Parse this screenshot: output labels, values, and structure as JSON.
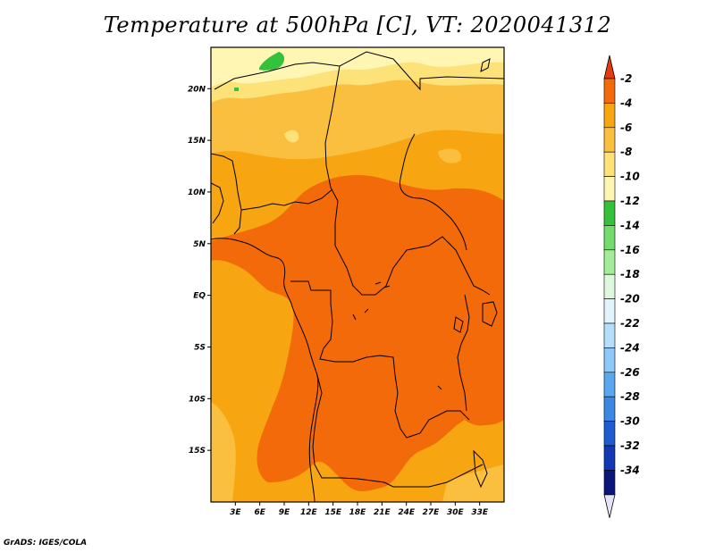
{
  "title": "Temperature at 500hPa [C], VT: 2020041312",
  "credit": "GrADS: IGES/COLA",
  "map": {
    "lon_range": [
      0,
      36
    ],
    "lat_range": [
      -20,
      24
    ],
    "x_ticks": [
      {
        "lon": 3,
        "label": "3E"
      },
      {
        "lon": 6,
        "label": "6E"
      },
      {
        "lon": 9,
        "label": "9E"
      },
      {
        "lon": 12,
        "label": "12E"
      },
      {
        "lon": 15,
        "label": "15E"
      },
      {
        "lon": 18,
        "label": "18E"
      },
      {
        "lon": 21,
        "label": "21E"
      },
      {
        "lon": 24,
        "label": "24E"
      },
      {
        "lon": 27,
        "label": "27E"
      },
      {
        "lon": 30,
        "label": "30E"
      },
      {
        "lon": 33,
        "label": "33E"
      }
    ],
    "y_ticks": [
      {
        "lat": 20,
        "label": "20N"
      },
      {
        "lat": 15,
        "label": "15N"
      },
      {
        "lat": 10,
        "label": "10N"
      },
      {
        "lat": 5,
        "label": "5N"
      },
      {
        "lat": 0,
        "label": "EQ"
      },
      {
        "lat": -5,
        "label": "5S"
      },
      {
        "lat": -10,
        "label": "10S"
      },
      {
        "lat": -15,
        "label": "15S"
      }
    ]
  },
  "colorbar": {
    "labels": [
      "-2",
      "-4",
      "-6",
      "-8",
      "-10",
      "-12",
      "-14",
      "-16",
      "-18",
      "-20",
      "-22",
      "-24",
      "-26",
      "-28",
      "-30",
      "-32",
      "-34"
    ],
    "colors": [
      "#e63a10",
      "#f26a0a",
      "#f7a510",
      "#fbbf3f",
      "#fde27a",
      "#fff6b4",
      "#34c13c",
      "#74dc6c",
      "#a4ec98",
      "#ddf8dd",
      "#e2f3fb",
      "#b4defa",
      "#8cc8f8",
      "#5aa6ef",
      "#3a88e4",
      "#1e5ad0",
      "#1238b4",
      "#0c167a",
      "#e4e4f6"
    ]
  },
  "colors": {
    "warm1": "#f26a0a",
    "warm2": "#f7a510",
    "warm3": "#fbbf3f",
    "warm4": "#fde27a",
    "warm5": "#fff6b4",
    "green": "#34c13c"
  }
}
